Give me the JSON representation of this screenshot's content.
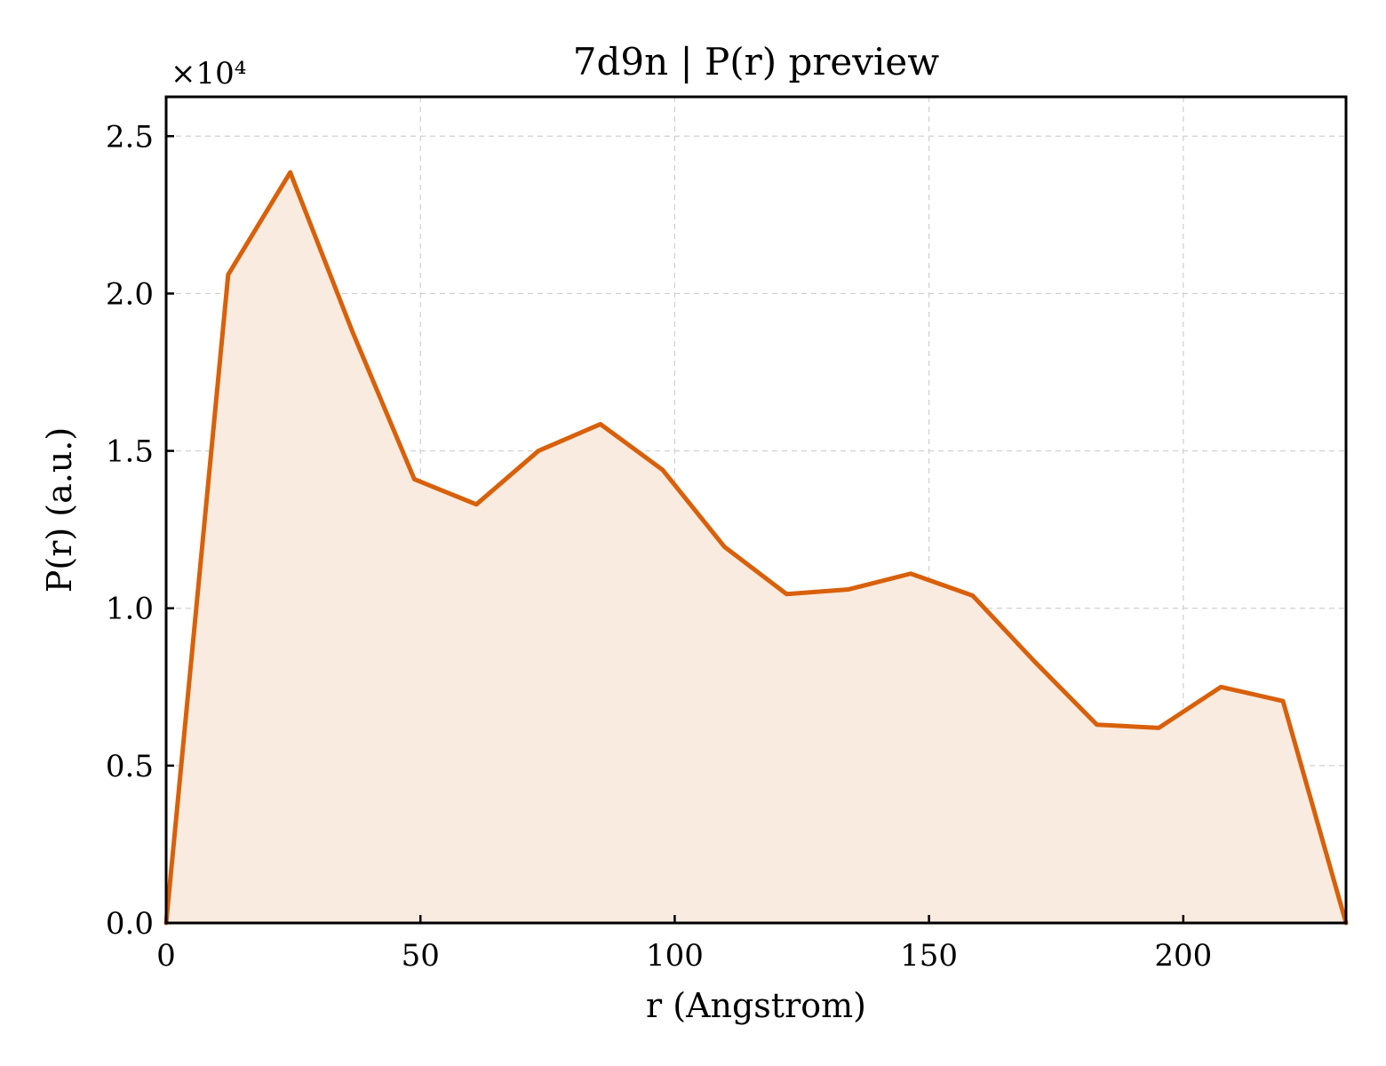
{
  "chart_data": {
    "type": "area",
    "title": "7d9n | P(r) preview",
    "xlabel": "r (Angstrom)",
    "ylabel": "P(r) (a.u.)",
    "y_multiplier_label": "×10⁴",
    "xlim": [
      0,
      232
    ],
    "ylim": [
      0,
      26250
    ],
    "xticks": [
      0,
      50,
      100,
      150,
      200
    ],
    "xtick_labels": [
      "0",
      "50",
      "100",
      "150",
      "200"
    ],
    "yticks": [
      0,
      5000,
      10000,
      15000,
      20000,
      25000
    ],
    "ytick_labels": [
      "0.0",
      "0.5",
      "1.0",
      "1.5",
      "2.0",
      "2.5"
    ],
    "grid": true,
    "line_color": "#d9600a",
    "fill_color": "#f9ebe0",
    "series": [
      {
        "x": [
          0,
          12.2,
          24.4,
          36.6,
          48.8,
          61.0,
          73.2,
          85.4,
          97.6,
          109.8,
          122.0,
          134.2,
          146.4,
          158.6,
          170.8,
          183.0,
          195.2,
          207.4,
          219.6,
          232.0
        ],
        "y": [
          0,
          20600,
          23850,
          18800,
          14100,
          13300,
          15000,
          15850,
          14400,
          11950,
          10450,
          10600,
          11100,
          10400,
          8300,
          6300,
          6200,
          7500,
          7050,
          0
        ]
      }
    ]
  }
}
